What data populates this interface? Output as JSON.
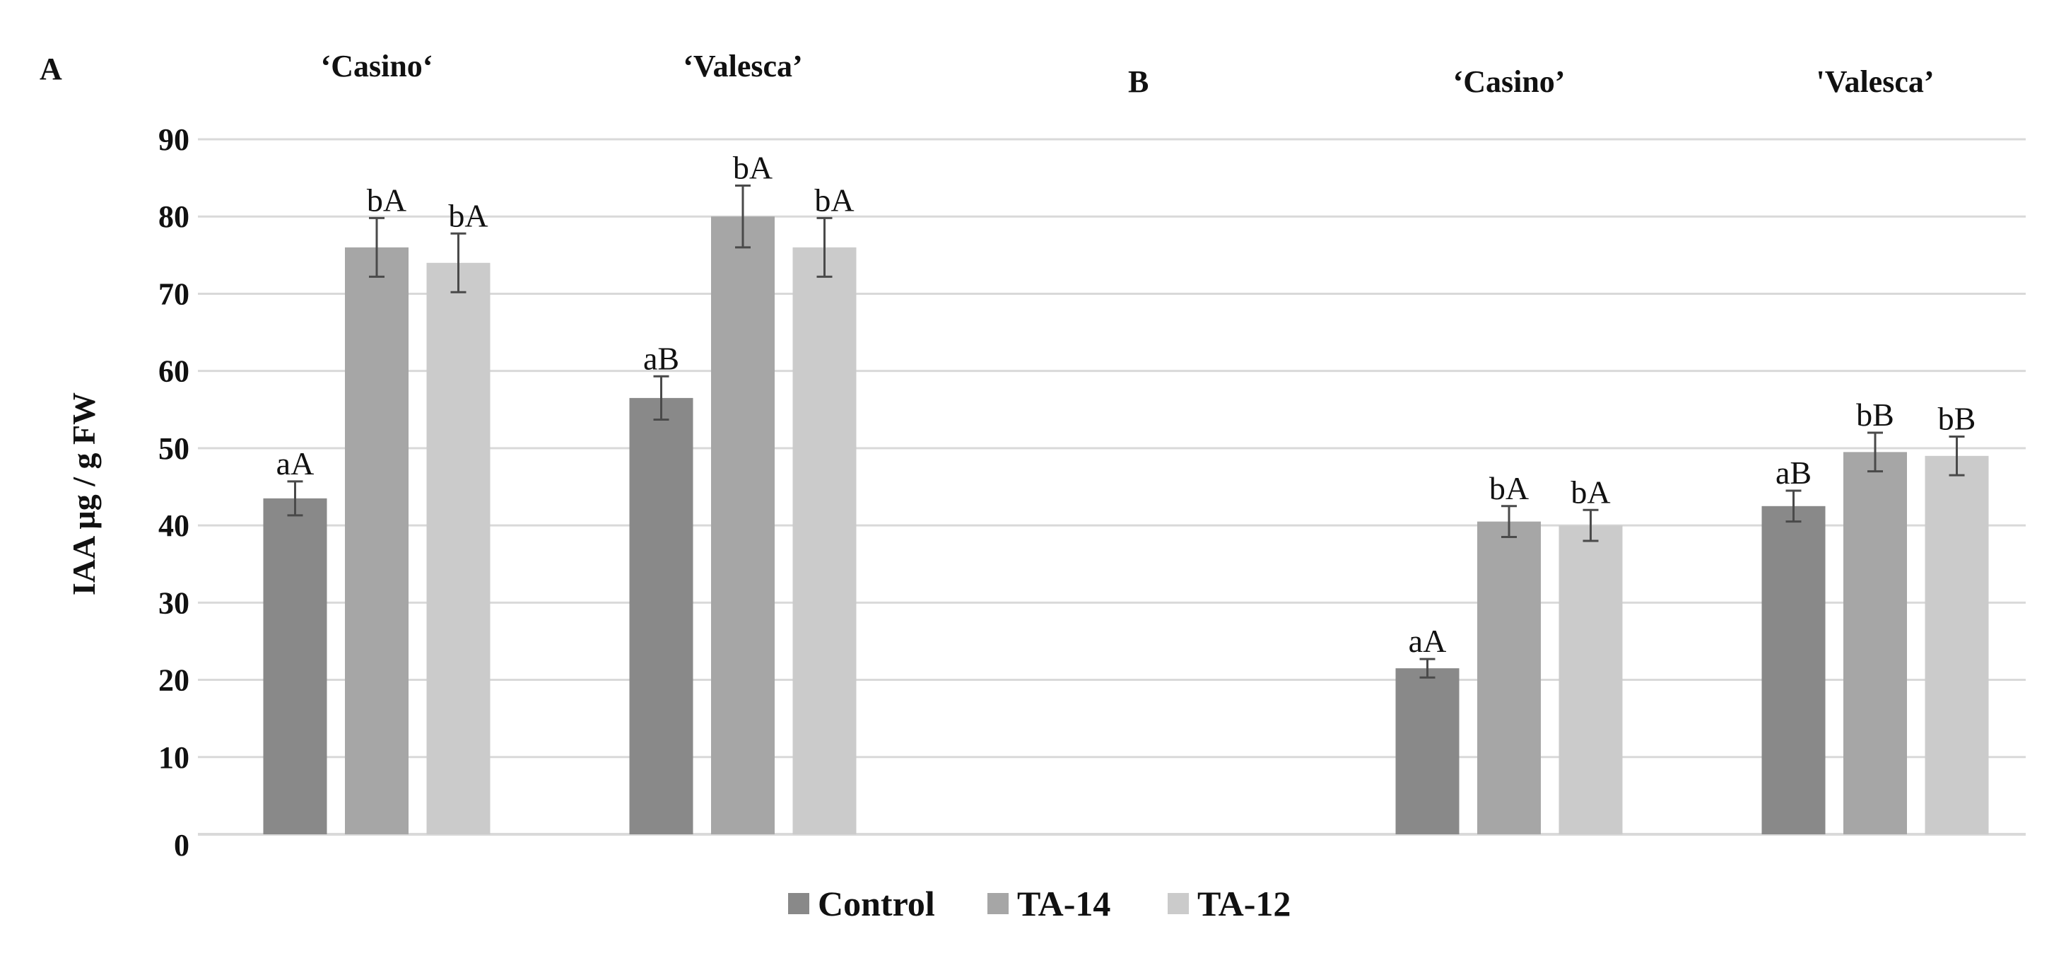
{
  "chart_data": {
    "type": "bar",
    "ylabel": "IAA µg / g FW",
    "ylim": [
      0,
      90
    ],
    "yticks": [
      0,
      10,
      20,
      30,
      40,
      50,
      60,
      70,
      80,
      90
    ],
    "grid": true,
    "legend_position": "bottom",
    "series": [
      {
        "name": "Control",
        "color": "#898989"
      },
      {
        "name": "TA-14",
        "color": "#a6a6a6"
      },
      {
        "name": "TA-12",
        "color": "#cbcbcb"
      }
    ],
    "panels": [
      {
        "label": "A",
        "groups": [
          {
            "name": "‘Casino‘",
            "values": [
              43.5,
              76,
              74
            ],
            "errors": [
              2.2,
              3.8,
              3.8
            ],
            "labels": [
              "aA",
              "bA",
              "bA"
            ]
          },
          {
            "name": "‘Valesca’",
            "values": [
              56.5,
              80,
              76
            ],
            "errors": [
              2.8,
              4,
              3.8
            ],
            "labels": [
              "aB",
              "bA",
              "bA"
            ]
          }
        ]
      },
      {
        "label": "B",
        "groups": [
          {
            "name": "‘Casino’",
            "values": [
              21.5,
              40.5,
              40
            ],
            "errors": [
              1.2,
              2,
              2
            ],
            "labels": [
              "aA",
              "bA",
              "bA"
            ]
          },
          {
            "name": "'Valesca’",
            "values": [
              42.5,
              49.5,
              49
            ],
            "errors": [
              2,
              2.5,
              2.5
            ],
            "labels": [
              "aB",
              "bB",
              "bB"
            ]
          }
        ]
      }
    ]
  }
}
